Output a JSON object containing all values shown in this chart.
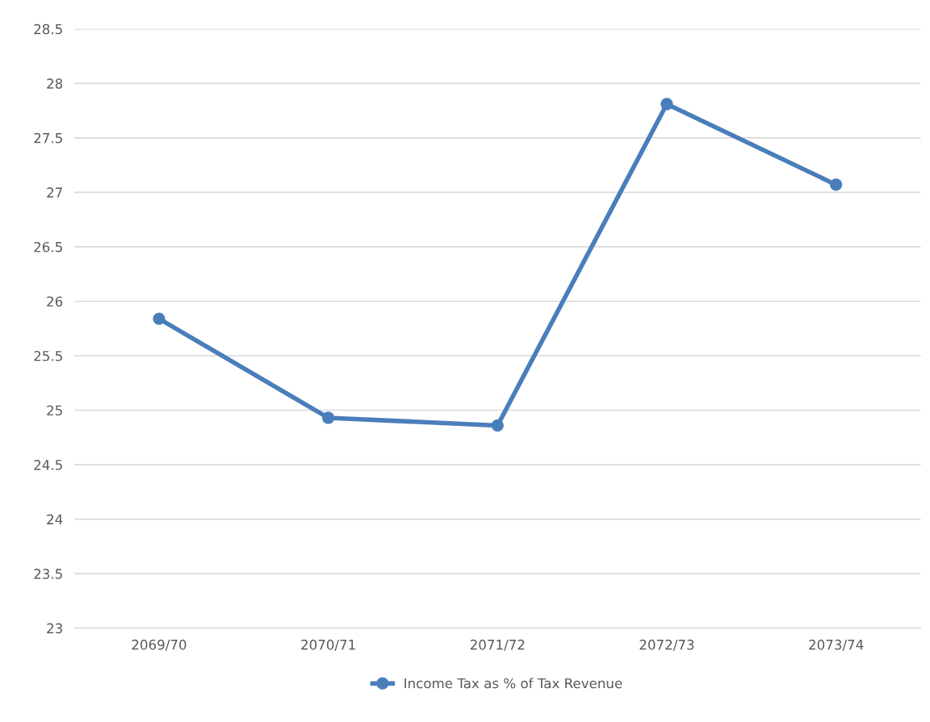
{
  "chart_data": {
    "type": "line",
    "categories": [
      "2069/70",
      "2070/71",
      "2071/72",
      "2072/73",
      "2073/74"
    ],
    "series": [
      {
        "name": "Income Tax as % of Tax Revenue",
        "color": "#4a7ebb",
        "values": [
          25.84,
          24.93,
          24.86,
          27.81,
          27.07
        ]
      }
    ],
    "ylim": [
      23,
      28.5
    ],
    "yticks": [
      23,
      23.5,
      24,
      24.5,
      25,
      25.5,
      26,
      26.5,
      27,
      27.5,
      28,
      28.5
    ],
    "grid": "y",
    "legend": "bottom",
    "marker": "circle",
    "line_style": "solid"
  }
}
